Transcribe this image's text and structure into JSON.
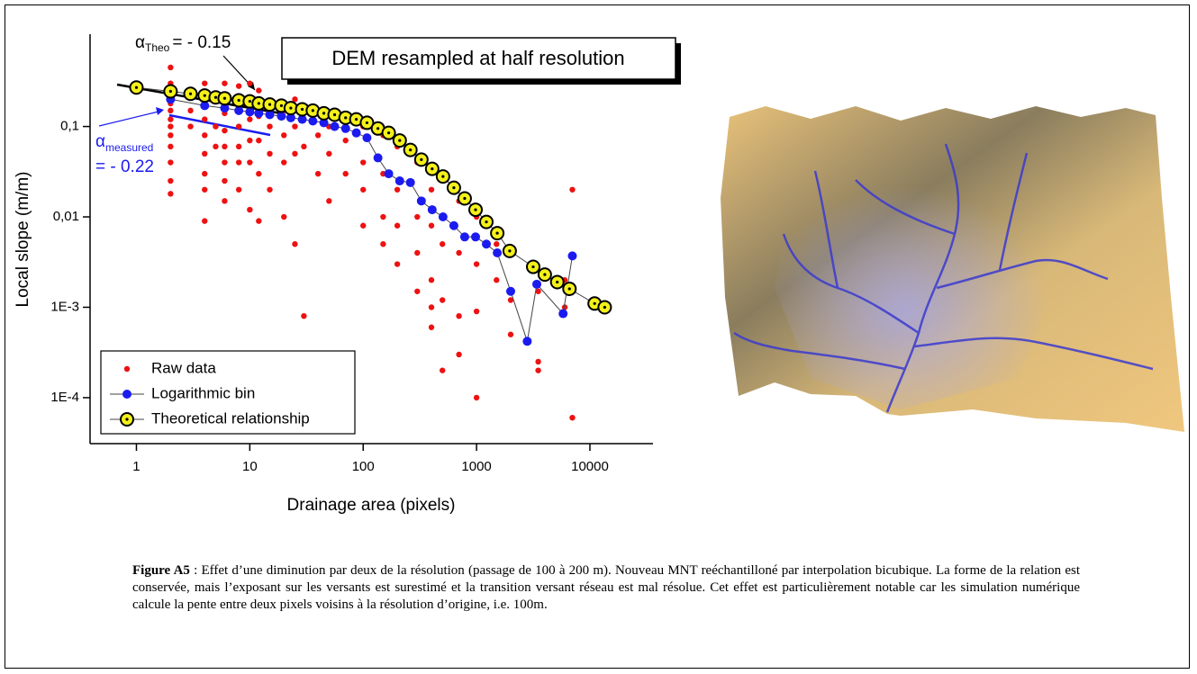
{
  "chart_data": {
    "type": "scatter",
    "title": "DEM resampled at half resolution",
    "x_label": "Drainage area (pixels)",
    "y_label": "Local slope (m/m)",
    "xscale": "log",
    "yscale": "log",
    "xlim": [
      0.39,
      36000
    ],
    "ylim": [
      3.1e-05,
      1.05
    ],
    "xticks": [
      1,
      10,
      100,
      1000,
      10000
    ],
    "yticks": [
      {
        "value": 0.0001,
        "label": "1E-4"
      },
      {
        "value": 0.001,
        "label": "1E-3"
      },
      {
        "value": 0.01,
        "label": "0,01"
      },
      {
        "value": 0.1,
        "label": "0,1"
      }
    ],
    "legend": "lower-left",
    "annotations": [
      {
        "symbol": "α",
        "sub": "Theo",
        "text": "= - 0.15",
        "color": "#000000"
      },
      {
        "symbol": "α",
        "sub": "measured",
        "text": "= - 0.22",
        "color": "#1b1bf0"
      }
    ],
    "series": [
      {
        "name": "Raw data",
        "color": "#ee1111",
        "marker": "dot",
        "x": [
          2,
          2,
          2,
          2,
          2,
          2,
          2,
          2,
          2,
          2,
          2,
          2,
          3,
          3,
          3,
          4,
          4,
          4,
          4,
          4,
          4,
          4,
          4,
          5,
          5,
          5,
          6,
          6,
          6,
          6,
          6,
          6,
          6,
          6,
          8,
          8,
          8,
          8,
          8,
          8,
          10,
          10,
          10,
          10,
          10,
          10,
          12,
          12,
          12,
          12,
          12,
          15,
          15,
          15,
          15,
          20,
          20,
          20,
          20,
          25,
          25,
          25,
          25,
          30,
          30,
          30,
          40,
          40,
          40,
          50,
          50,
          50,
          70,
          70,
          70,
          100,
          100,
          100,
          100,
          150,
          150,
          150,
          150,
          200,
          200,
          200,
          200,
          300,
          300,
          300,
          300,
          400,
          400,
          400,
          400,
          400,
          500,
          500,
          500,
          500,
          700,
          700,
          700,
          700,
          1000,
          1000,
          1000,
          1000,
          1500,
          1500,
          2000,
          2000,
          2000,
          3500,
          3500,
          3500,
          6000,
          6000,
          7000,
          7000
        ],
        "values": [
          0.45,
          0.3,
          0.22,
          0.18,
          0.15,
          0.12,
          0.1,
          0.08,
          0.06,
          0.04,
          0.025,
          0.018,
          0.25,
          0.15,
          0.1,
          0.3,
          0.2,
          0.12,
          0.08,
          0.05,
          0.03,
          0.02,
          0.009,
          0.2,
          0.1,
          0.06,
          0.3,
          0.2,
          0.14,
          0.09,
          0.06,
          0.04,
          0.025,
          0.015,
          0.28,
          0.18,
          0.1,
          0.06,
          0.04,
          0.02,
          0.3,
          0.2,
          0.12,
          0.07,
          0.04,
          0.012,
          0.25,
          0.13,
          0.07,
          0.03,
          0.009,
          0.18,
          0.1,
          0.05,
          0.02,
          0.15,
          0.08,
          0.04,
          0.01,
          0.2,
          0.1,
          0.05,
          0.005,
          0.12,
          0.06,
          0.0008,
          0.15,
          0.08,
          0.03,
          0.1,
          0.05,
          0.015,
          0.12,
          0.07,
          0.03,
          0.1,
          0.04,
          0.02,
          0.008,
          0.08,
          0.03,
          0.01,
          0.005,
          0.06,
          0.02,
          0.008,
          0.003,
          0.04,
          0.01,
          0.004,
          0.0015,
          0.02,
          0.008,
          0.002,
          0.001,
          0.0006,
          0.03,
          0.005,
          0.0012,
          0.0002,
          0.015,
          0.004,
          0.0008,
          0.0003,
          0.01,
          0.003,
          0.0009,
          0.0001,
          0.005,
          0.002,
          0.0015,
          0.0005,
          0.0012,
          0.0015,
          0.0002,
          0.00025,
          0.002,
          0.001,
          0.02,
          6e-05
        ]
      },
      {
        "name": "Logarithmic bin",
        "color": "#1b1bf0",
        "marker": "circle",
        "line": true,
        "x": [
          2,
          4,
          6,
          8,
          10,
          12,
          15,
          19,
          23,
          29,
          36,
          45,
          56,
          70,
          87,
          108,
          135,
          168,
          210,
          261,
          326,
          406,
          506,
          631,
          786,
          980,
          1221,
          1523,
          2000,
          2800,
          3400,
          5800,
          7000
        ],
        "values": [
          0.2,
          0.17,
          0.16,
          0.15,
          0.145,
          0.14,
          0.135,
          0.13,
          0.125,
          0.12,
          0.115,
          0.11,
          0.1,
          0.095,
          0.085,
          0.075,
          0.045,
          0.03,
          0.025,
          0.024,
          0.015,
          0.012,
          0.01,
          0.008,
          0.006,
          0.006,
          0.005,
          0.004,
          0.0015,
          0.00042,
          0.0018,
          0.00085,
          0.0037
        ]
      },
      {
        "name": "Theoretical relationship",
        "color": "#f4f01a",
        "marker": "ring",
        "line": true,
        "x": [
          1,
          2,
          3,
          4,
          5,
          6,
          8,
          10,
          12,
          15,
          19,
          23,
          29,
          36,
          45,
          56,
          70,
          87,
          108,
          135,
          168,
          210,
          261,
          326,
          406,
          506,
          631,
          786,
          980,
          1221,
          1523,
          1960,
          3160,
          4000,
          5150,
          6600,
          11000,
          13500
        ],
        "values": [
          0.27,
          0.245,
          0.23,
          0.22,
          0.21,
          0.205,
          0.195,
          0.19,
          0.18,
          0.175,
          0.17,
          0.16,
          0.155,
          0.15,
          0.14,
          0.135,
          0.125,
          0.12,
          0.11,
          0.095,
          0.085,
          0.07,
          0.055,
          0.043,
          0.034,
          0.028,
          0.021,
          0.016,
          0.012,
          0.0088,
          0.0066,
          0.0042,
          0.0028,
          0.0023,
          0.0019,
          0.0016,
          0.0011,
          0.001
        ]
      }
    ]
  },
  "caption": {
    "label": "Figure A5",
    "text": ": Effet d’une diminution par deux de la résolution (passage de 100 à 200 m). Nouveau MNT reéchantilloné par interpolation bicubique. La forme de la relation est conservée, mais l’exposant sur les versants est surestimé et la transition versant réseau est mal résolue. Cet effet est particulièrement notable car les simulation numérique calcule la pente entre deux pixels voisins à la résolution d’origine, i.e. 100m."
  }
}
